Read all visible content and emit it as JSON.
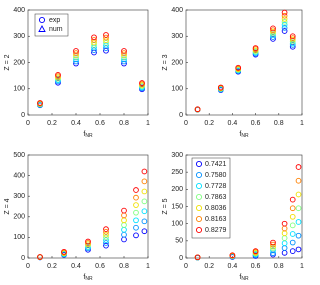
{
  "chart_data": [
    {
      "type": "scatter",
      "ylabel": "Z = 2",
      "xlabel": {
        "base": "f",
        "sub": "NR"
      },
      "xlim": [
        0,
        1
      ],
      "xticks": [
        0,
        0.2,
        0.4,
        0.6,
        0.8,
        1
      ],
      "ylim": [
        0,
        400
      ],
      "yticks": [
        0,
        100,
        200,
        300,
        400
      ],
      "legend": {
        "corner": "upper left",
        "color": "#0000ff",
        "items": [
          {
            "label": "exp",
            "marker": "circle"
          },
          {
            "label": "num",
            "marker": "triangle"
          }
        ]
      },
      "series": [
        {
          "color": "#0000ff",
          "x": [
            0.1,
            0.25,
            0.4,
            0.55,
            0.65,
            0.8,
            0.95
          ],
          "values": [
            37,
            123,
            196,
            238,
            245,
            196,
            98
          ]
        },
        {
          "color": "#0090ff",
          "x": [
            0.1,
            0.25,
            0.4,
            0.55,
            0.65,
            0.8,
            0.95
          ],
          "values": [
            38,
            128,
            204,
            247,
            255,
            204,
            102
          ]
        },
        {
          "color": "#00e0ff",
          "x": [
            0.1,
            0.25,
            0.4,
            0.55,
            0.65,
            0.8,
            0.95
          ],
          "values": [
            40,
            133,
            212,
            257,
            265,
            212,
            106
          ]
        },
        {
          "color": "#80ff80",
          "x": [
            0.1,
            0.25,
            0.4,
            0.55,
            0.65,
            0.8,
            0.95
          ],
          "values": [
            41,
            138,
            220,
            267,
            275,
            220,
            110
          ]
        },
        {
          "color": "#f0e000",
          "x": [
            0.1,
            0.25,
            0.4,
            0.55,
            0.65,
            0.8,
            0.95
          ],
          "values": [
            43,
            143,
            228,
            276,
            285,
            228,
            114
          ]
        },
        {
          "color": "#ff8000",
          "x": [
            0.1,
            0.25,
            0.4,
            0.55,
            0.65,
            0.8,
            0.95
          ],
          "values": [
            44,
            148,
            236,
            286,
            295,
            236,
            118
          ]
        },
        {
          "color": "#ff0000",
          "x": [
            0.1,
            0.25,
            0.4,
            0.55,
            0.65,
            0.8,
            0.95
          ],
          "values": [
            46,
            153,
            244,
            296,
            305,
            244,
            122
          ]
        }
      ]
    },
    {
      "type": "scatter",
      "ylabel": "Z = 3",
      "xlabel": {
        "base": "f",
        "sub": "NR"
      },
      "xlim": [
        0,
        1
      ],
      "xticks": [
        0,
        0.2,
        0.4,
        0.6,
        0.8,
        1
      ],
      "ylim": [
        0,
        400
      ],
      "yticks": [
        0,
        100,
        200,
        300,
        400
      ],
      "series": [
        {
          "color": "#0000ff",
          "x": [
            0.1,
            0.3,
            0.45,
            0.6,
            0.75,
            0.85,
            0.92
          ],
          "values": [
            20,
            95,
            165,
            230,
            290,
            320,
            260
          ]
        },
        {
          "color": "#0090ff",
          "x": [
            0.1,
            0.3,
            0.45,
            0.6,
            0.75,
            0.85,
            0.92
          ],
          "values": [
            20,
            97,
            167,
            234,
            297,
            332,
            267
          ]
        },
        {
          "color": "#00e0ff",
          "x": [
            0.1,
            0.3,
            0.45,
            0.6,
            0.75,
            0.85,
            0.92
          ],
          "values": [
            21,
            98,
            170,
            238,
            304,
            344,
            273
          ]
        },
        {
          "color": "#80ff80",
          "x": [
            0.1,
            0.3,
            0.45,
            0.6,
            0.75,
            0.85,
            0.92
          ],
          "values": [
            21,
            100,
            172,
            242,
            310,
            355,
            280
          ]
        },
        {
          "color": "#f0e000",
          "x": [
            0.1,
            0.3,
            0.45,
            0.6,
            0.75,
            0.85,
            0.92
          ],
          "values": [
            21,
            102,
            175,
            246,
            317,
            366,
            287
          ]
        },
        {
          "color": "#ff8000",
          "x": [
            0.1,
            0.3,
            0.45,
            0.6,
            0.75,
            0.85,
            0.92
          ],
          "values": [
            22,
            103,
            177,
            251,
            323,
            378,
            293
          ]
        },
        {
          "color": "#ff0000",
          "x": [
            0.1,
            0.3,
            0.45,
            0.6,
            0.75,
            0.85,
            0.92
          ],
          "values": [
            22,
            105,
            180,
            255,
            330,
            390,
            300
          ]
        }
      ]
    },
    {
      "type": "scatter",
      "ylabel": "Z = 4",
      "xlabel": {
        "base": "f",
        "sub": "NR"
      },
      "xlim": [
        0,
        1
      ],
      "xticks": [
        0,
        0.2,
        0.4,
        0.6,
        0.8,
        1
      ],
      "ylim": [
        0,
        500
      ],
      "yticks": [
        0,
        100,
        200,
        300,
        400,
        500
      ],
      "series": [
        {
          "color": "#0000ff",
          "x": [
            0.1,
            0.3,
            0.5,
            0.65,
            0.8,
            0.9,
            0.97
          ],
          "values": [
            3,
            15,
            40,
            60,
            90,
            110,
            130
          ]
        },
        {
          "color": "#0090ff",
          "x": [
            0.1,
            0.3,
            0.5,
            0.65,
            0.8,
            0.9,
            0.97
          ],
          "values": [
            3,
            17,
            47,
            73,
            113,
            147,
            178
          ]
        },
        {
          "color": "#00e0ff",
          "x": [
            0.1,
            0.3,
            0.5,
            0.65,
            0.8,
            0.9,
            0.97
          ],
          "values": [
            4,
            19,
            53,
            87,
            137,
            183,
            227
          ]
        },
        {
          "color": "#80ff80",
          "x": [
            0.1,
            0.3,
            0.5,
            0.65,
            0.8,
            0.9,
            0.97
          ],
          "values": [
            4,
            22,
            60,
            100,
            160,
            220,
            275
          ]
        },
        {
          "color": "#f0e000",
          "x": [
            0.1,
            0.3,
            0.5,
            0.65,
            0.8,
            0.9,
            0.97
          ],
          "values": [
            4,
            24,
            67,
            113,
            183,
            257,
            323
          ]
        },
        {
          "color": "#ff8000",
          "x": [
            0.1,
            0.3,
            0.5,
            0.65,
            0.8,
            0.9,
            0.97
          ],
          "values": [
            5,
            27,
            73,
            127,
            207,
            293,
            372
          ]
        },
        {
          "color": "#ff0000",
          "x": [
            0.1,
            0.3,
            0.5,
            0.65,
            0.8,
            0.9,
            0.97
          ],
          "values": [
            5,
            30,
            80,
            140,
            230,
            330,
            420
          ]
        }
      ]
    },
    {
      "type": "scatter",
      "ylabel": "Z = 5",
      "xlabel": {
        "base": "f",
        "sub": "NR"
      },
      "xlim": [
        0,
        1
      ],
      "xticks": [
        0,
        0.2,
        0.4,
        0.6,
        0.8,
        1
      ],
      "ylim": [
        0,
        300
      ],
      "yticks": [
        0,
        50,
        100,
        150,
        200,
        250,
        300
      ],
      "legend_corner": "upper left",
      "series": [
        {
          "name": "0.7421",
          "color": "#0000ff",
          "x": [
            0.1,
            0.4,
            0.6,
            0.75,
            0.85,
            0.92,
            0.97
          ],
          "values": [
            1,
            3,
            6,
            10,
            15,
            20,
            25
          ]
        },
        {
          "name": "0.7580",
          "color": "#0090ff",
          "x": [
            0.1,
            0.4,
            0.6,
            0.75,
            0.85,
            0.92,
            0.97
          ],
          "values": [
            1,
            4,
            8,
            14,
            29,
            45,
            65
          ]
        },
        {
          "name": "0.7728",
          "color": "#00e0ff",
          "x": [
            0.1,
            0.4,
            0.6,
            0.75,
            0.85,
            0.92,
            0.97
          ],
          "values": [
            1,
            5,
            11,
            22,
            43,
            70,
            105
          ]
        },
        {
          "name": "0.7863",
          "color": "#80ff80",
          "x": [
            0.1,
            0.4,
            0.6,
            0.75,
            0.85,
            0.92,
            0.97
          ],
          "values": [
            2,
            6,
            13,
            28,
            58,
            95,
            145
          ]
        },
        {
          "name": "0.8036",
          "color": "#f0e000",
          "x": [
            0.1,
            0.4,
            0.6,
            0.75,
            0.85,
            0.92,
            0.97
          ],
          "values": [
            2,
            6,
            15,
            33,
            72,
            120,
            185
          ]
        },
        {
          "name": "0.8163",
          "color": "#ff8000",
          "x": [
            0.1,
            0.4,
            0.6,
            0.75,
            0.85,
            0.92,
            0.97
          ],
          "values": [
            2,
            7,
            18,
            39,
            86,
            145,
            225
          ]
        },
        {
          "name": "0.8279",
          "color": "#ff0000",
          "x": [
            0.1,
            0.4,
            0.6,
            0.75,
            0.85,
            0.92,
            0.97
          ],
          "values": [
            2,
            8,
            20,
            45,
            100,
            170,
            265
          ]
        }
      ]
    }
  ]
}
